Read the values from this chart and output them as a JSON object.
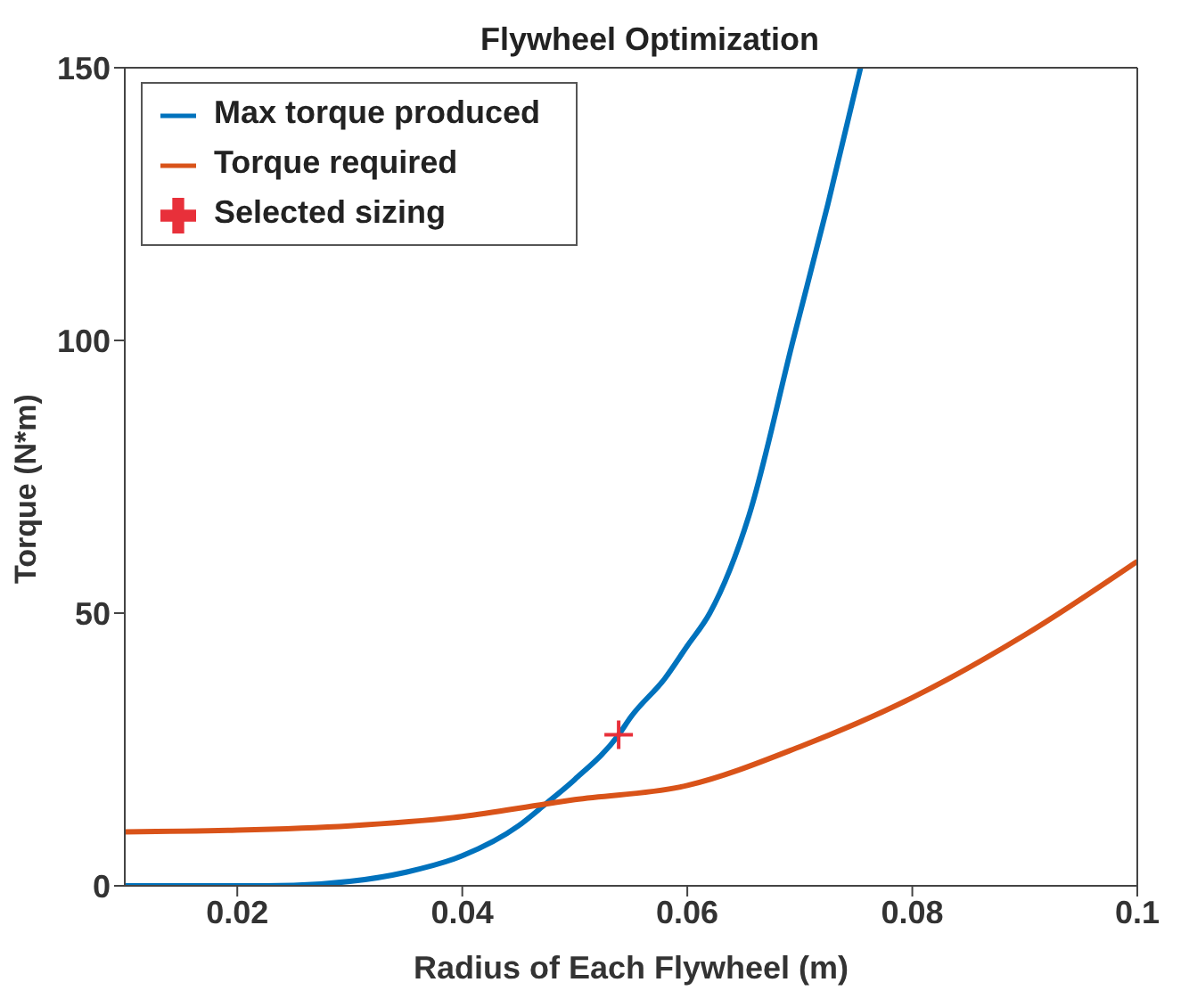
{
  "chart_data": {
    "type": "line",
    "title": "Flywheel Optimization",
    "xlabel": "Radius of Each Flywheel (m)",
    "ylabel": "Torque (N*m)",
    "xlim": [
      0.01,
      0.1
    ],
    "xticks": [
      0.02,
      0.04,
      0.06,
      0.08,
      0.1
    ],
    "ylim": [
      0,
      150
    ],
    "yticks": [
      0,
      50,
      100,
      150
    ],
    "grid": false,
    "legend": "top left",
    "series": [
      {
        "name": "Max torque produced",
        "color": "#0072bd",
        "x": [
          0.01,
          0.02,
          0.025,
          0.03,
          0.035,
          0.04,
          0.045,
          0.0474,
          0.05,
          0.0539,
          0.055,
          0.058,
          0.06,
          0.062,
          0.0655,
          0.0694,
          0.0725,
          0.0754
        ],
        "values": [
          0,
          0,
          0.1,
          0.8,
          2.5,
          5.5,
          11,
          15,
          19.5,
          27.7,
          31,
          38,
          44,
          50,
          68,
          100,
          125,
          150
        ]
      },
      {
        "name": "Torque required",
        "color": "#d95319",
        "x": [
          0.01,
          0.02,
          0.03,
          0.04,
          0.0474,
          0.05,
          0.06,
          0.07,
          0.08,
          0.09,
          0.1
        ],
        "values": [
          9.9,
          10.2,
          11,
          12.7,
          15,
          15.8,
          18.4,
          25.5,
          34.5,
          46,
          59.5
        ]
      },
      {
        "name": "Selected sizing",
        "type": "scatter",
        "marker": "cross",
        "color": "#e8303a",
        "x": [
          0.0539
        ],
        "values": [
          27.7
        ]
      }
    ]
  }
}
